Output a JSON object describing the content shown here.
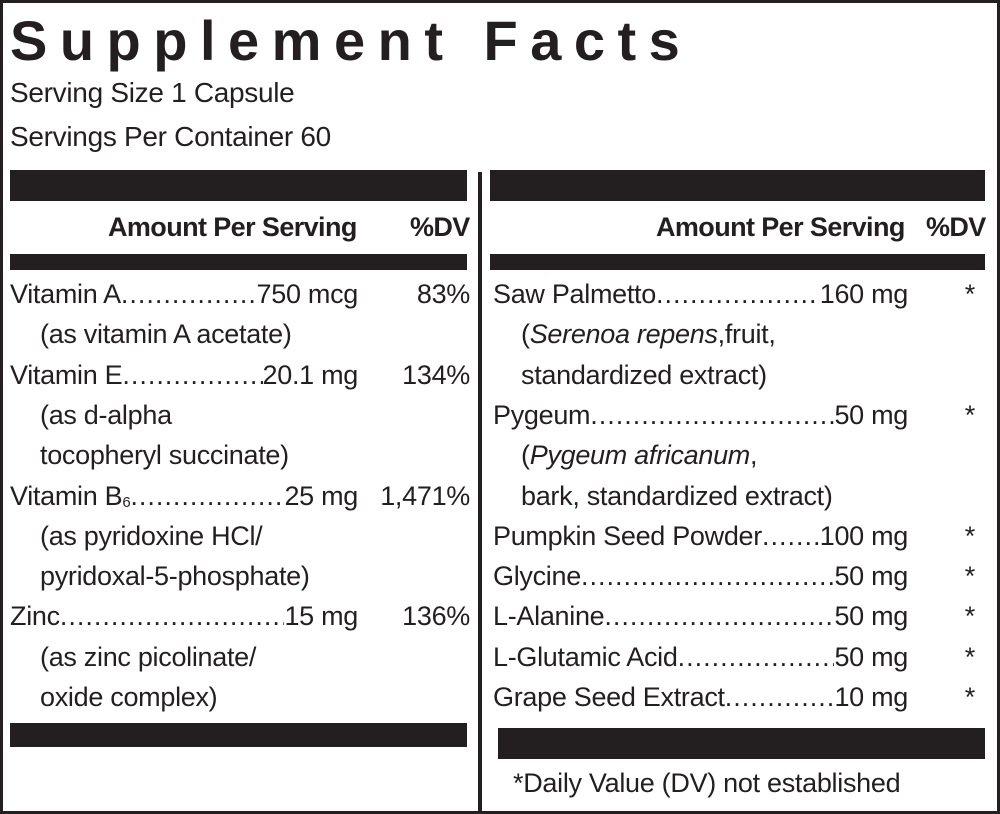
{
  "title": "Supplement Facts",
  "serving_size": "Serving Size 1 Capsule",
  "servings_per_container": "Servings Per Container 60",
  "header": {
    "amount": "Amount Per Serving",
    "dv": "%DV"
  },
  "left": [
    {
      "name": "Vitamin A",
      "amount": "750 mcg",
      "dv": "83%",
      "notes": [
        [
          {
            "text": "(as vitamin A acetate)"
          }
        ]
      ]
    },
    {
      "name": "Vitamin E",
      "amount": "20.1 mg",
      "dv": "134%",
      "notes": [
        [
          {
            "text": "(as d-alpha"
          }
        ],
        [
          {
            "text": "tocopheryl succinate)"
          }
        ]
      ]
    },
    {
      "name": "Vitamin B",
      "sub": "6",
      "amount": "25 mg",
      "dv": "1,471%",
      "notes": [
        [
          {
            "text": "(as pyridoxine HCl/"
          }
        ],
        [
          {
            "text": "pyridoxal-5-phosphate)"
          }
        ]
      ]
    },
    {
      "name": "Zinc",
      "amount": "15 mg",
      "dv": "136%",
      "notes": [
        [
          {
            "text": "(as zinc picolinate/"
          }
        ],
        [
          {
            "text": "oxide complex)"
          }
        ]
      ]
    }
  ],
  "right": [
    {
      "name": "Saw Palmetto",
      "amount": "160 mg",
      "dv": "*",
      "notes": [
        [
          {
            "text": "("
          },
          {
            "text": "Serenoa repens",
            "italic": true
          },
          {
            "text": ",fruit,"
          }
        ],
        [
          {
            "text": "standardized extract)"
          }
        ]
      ]
    },
    {
      "name": "Pygeum ",
      "amount": "50 mg",
      "dv": "*",
      "notes": [
        [
          {
            "text": "("
          },
          {
            "text": "Pygeum africanum",
            "italic": true
          },
          {
            "text": ","
          }
        ],
        [
          {
            "text": "bark, standardized extract)"
          }
        ]
      ]
    },
    {
      "name": "Pumpkin Seed Powder ",
      "amount": "100 mg",
      "dv": "*",
      "notes": []
    },
    {
      "name": "Glycine",
      "amount": "50 mg",
      "dv": "*",
      "notes": []
    },
    {
      "name": "L-Alanine ",
      "amount": "50 mg",
      "dv": "*",
      "notes": []
    },
    {
      "name": "L-Glutamic Acid ",
      "amount": "50 mg",
      "dv": "*",
      "notes": []
    },
    {
      "name": "Grape Seed Extract",
      "amount": "10 mg",
      "dv": "*",
      "notes": []
    }
  ],
  "footnote": "*Daily Value (DV) not established"
}
